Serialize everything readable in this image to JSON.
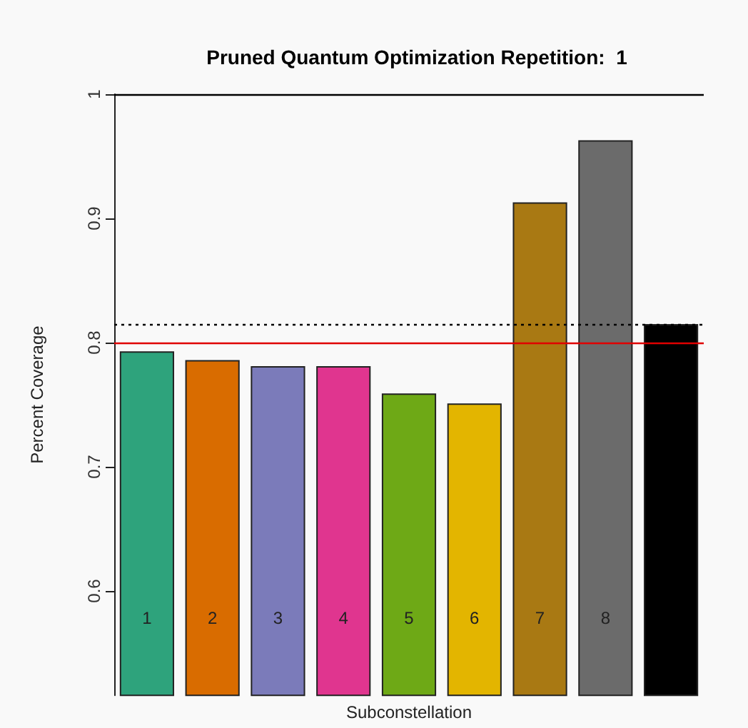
{
  "chart_data": {
    "type": "bar",
    "title": "Pruned Quantum Optimization Repetition:  1",
    "xlabel": "Subconstellation",
    "ylabel": "Percent Coverage",
    "categories": [
      "1",
      "2",
      "3",
      "4",
      "5",
      "6",
      "7",
      "8",
      null
    ],
    "values": [
      0.793,
      0.786,
      0.781,
      0.781,
      0.759,
      0.751,
      0.913,
      0.963,
      0.815
    ],
    "colors": [
      "#2ea37c",
      "#d96c00",
      "#7b7bba",
      "#e0358f",
      "#6ea916",
      "#e3b500",
      "#a97913",
      "#6b6b6b",
      "#000000"
    ],
    "ylim": [
      0.516,
      1.0
    ],
    "yticks": [
      0.6,
      0.7,
      0.8,
      0.9,
      1.0
    ],
    "grid": false,
    "ref_lines": [
      {
        "axis": "y",
        "value": 1.0,
        "color": "#000000",
        "line_style": "solid"
      },
      {
        "axis": "y",
        "value": 0.815,
        "color": "#000000",
        "line_style": "dotted"
      },
      {
        "axis": "y",
        "value": 0.8,
        "color": "#e00000",
        "line_style": "solid"
      }
    ]
  }
}
